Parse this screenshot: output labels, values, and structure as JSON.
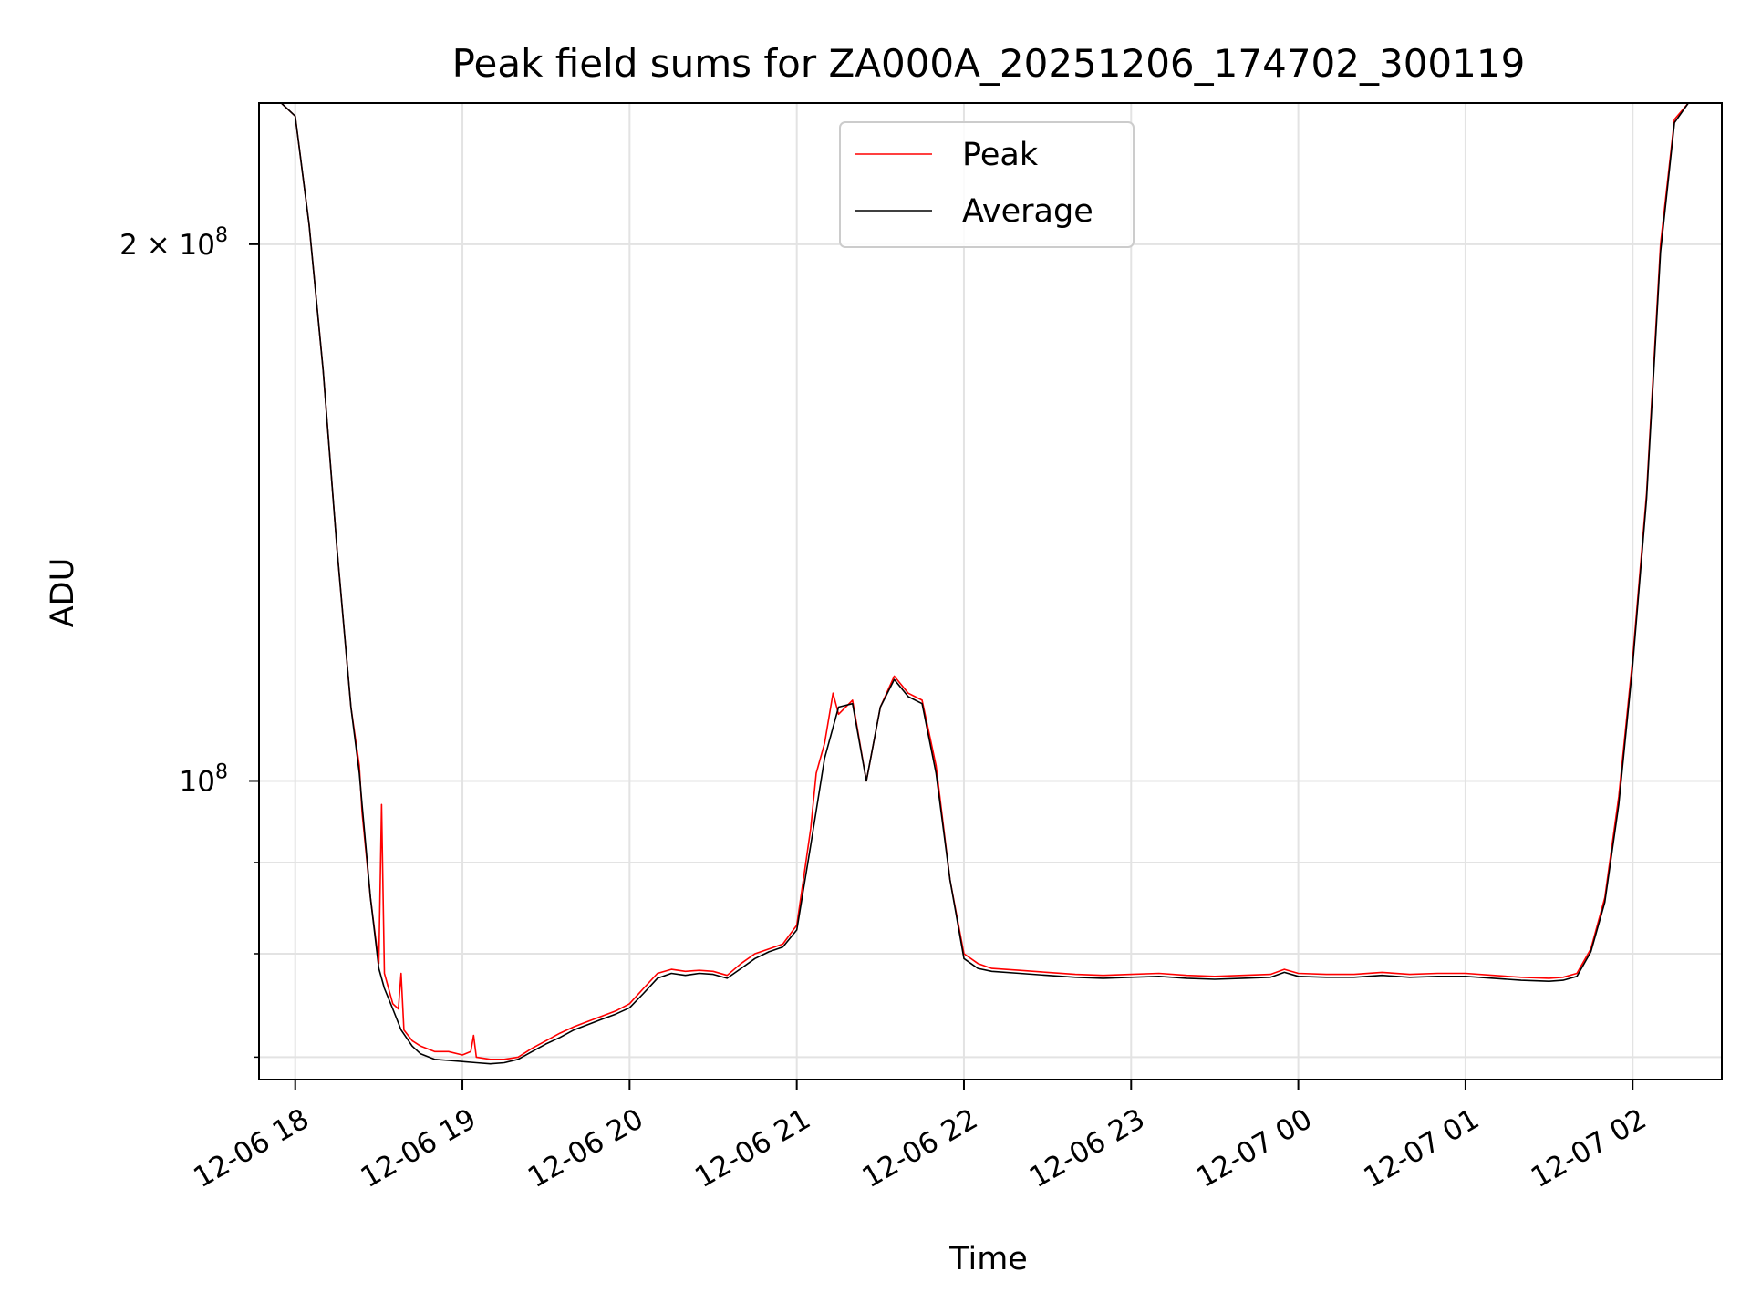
{
  "chart_data": {
    "type": "line",
    "title": "Peak field sums for ZA000A_20251206_174702_300119",
    "xlabel": "Time",
    "ylabel": "ADU",
    "y_scale": "log",
    "xlim": [
      "2025-12-06 17:47",
      "2025-12-07 02:32"
    ],
    "ylim": [
      68000000,
      240000000
    ],
    "grid": true,
    "legend": {
      "placement": "top-center",
      "entries": [
        "Peak",
        "Average"
      ]
    },
    "x_ticks": [
      {
        "value": "2025-12-06 18:00",
        "label": "12-06 18"
      },
      {
        "value": "2025-12-06 19:00",
        "label": "12-06 19"
      },
      {
        "value": "2025-12-06 20:00",
        "label": "12-06 20"
      },
      {
        "value": "2025-12-06 21:00",
        "label": "12-06 21"
      },
      {
        "value": "2025-12-06 22:00",
        "label": "12-06 22"
      },
      {
        "value": "2025-12-06 23:00",
        "label": "12-06 23"
      },
      {
        "value": "2025-12-07 00:00",
        "label": "12-07 00"
      },
      {
        "value": "2025-12-07 01:00",
        "label": "12-07 01"
      },
      {
        "value": "2025-12-07 02:00",
        "label": "12-07 02"
      }
    ],
    "y_ticks_major": [
      {
        "value": 100000000,
        "label": "10",
        "exp": "8"
      },
      {
        "value": 200000000,
        "label": "2 × 10",
        "exp": "8"
      }
    ],
    "y_ticks_minor": [
      70000000,
      80000000,
      90000000
    ],
    "series": [
      {
        "name": "Peak",
        "color": "#ff0000",
        "x": [
          "2025-12-06 17:47",
          "2025-12-06 17:55",
          "2025-12-06 18:00",
          "2025-12-06 18:05",
          "2025-12-06 18:10",
          "2025-12-06 18:15",
          "2025-12-06 18:20",
          "2025-12-06 18:23",
          "2025-12-06 18:24",
          "2025-12-06 18:27",
          "2025-12-06 18:30",
          "2025-12-06 18:31",
          "2025-12-06 18:32",
          "2025-12-06 18:35",
          "2025-12-06 18:37",
          "2025-12-06 18:38",
          "2025-12-06 18:39",
          "2025-12-06 18:42",
          "2025-12-06 18:45",
          "2025-12-06 18:50",
          "2025-12-06 18:55",
          "2025-12-06 19:00",
          "2025-12-06 19:03",
          "2025-12-06 19:04",
          "2025-12-06 19:05",
          "2025-12-06 19:10",
          "2025-12-06 19:15",
          "2025-12-06 19:20",
          "2025-12-06 19:25",
          "2025-12-06 19:30",
          "2025-12-06 19:35",
          "2025-12-06 19:40",
          "2025-12-06 19:45",
          "2025-12-06 19:50",
          "2025-12-06 19:55",
          "2025-12-06 20:00",
          "2025-12-06 20:05",
          "2025-12-06 20:10",
          "2025-12-06 20:15",
          "2025-12-06 20:20",
          "2025-12-06 20:25",
          "2025-12-06 20:30",
          "2025-12-06 20:35",
          "2025-12-06 20:40",
          "2025-12-06 20:45",
          "2025-12-06 20:50",
          "2025-12-06 20:55",
          "2025-12-06 21:00",
          "2025-12-06 21:05",
          "2025-12-06 21:07",
          "2025-12-06 21:10",
          "2025-12-06 21:13",
          "2025-12-06 21:15",
          "2025-12-06 21:20",
          "2025-12-06 21:25",
          "2025-12-06 21:30",
          "2025-12-06 21:35",
          "2025-12-06 21:40",
          "2025-12-06 21:45",
          "2025-12-06 21:50",
          "2025-12-06 21:55",
          "2025-12-06 22:00",
          "2025-12-06 22:05",
          "2025-12-06 22:10",
          "2025-12-06 22:20",
          "2025-12-06 22:30",
          "2025-12-06 22:40",
          "2025-12-06 22:50",
          "2025-12-06 23:00",
          "2025-12-06 23:10",
          "2025-12-06 23:20",
          "2025-12-06 23:30",
          "2025-12-06 23:40",
          "2025-12-06 23:50",
          "2025-12-06 23:55",
          "2025-12-07 00:00",
          "2025-12-07 00:10",
          "2025-12-07 00:20",
          "2025-12-07 00:30",
          "2025-12-07 00:40",
          "2025-12-07 00:50",
          "2025-12-07 01:00",
          "2025-12-07 01:10",
          "2025-12-07 01:20",
          "2025-12-07 01:30",
          "2025-12-07 01:35",
          "2025-12-07 01:40",
          "2025-12-07 01:45",
          "2025-12-07 01:50",
          "2025-12-07 01:55",
          "2025-12-07 02:00",
          "2025-12-07 02:05",
          "2025-12-07 02:10",
          "2025-12-07 02:15",
          "2025-12-07 02:20",
          "2025-12-07 02:32"
        ],
        "y": [
          240000000,
          240000000,
          236000000,
          205000000,
          170000000,
          135000000,
          110000000,
          102000000,
          96000000,
          86000000,
          79000000,
          97000000,
          78000000,
          75000000,
          74500000,
          78000000,
          72500000,
          71500000,
          71000000,
          70500000,
          70500000,
          70200000,
          70500000,
          72000000,
          70000000,
          69800000,
          69800000,
          70000000,
          70800000,
          71500000,
          72200000,
          72800000,
          73300000,
          73800000,
          74300000,
          75000000,
          76500000,
          78000000,
          78400000,
          78200000,
          78300000,
          78200000,
          77800000,
          79000000,
          80000000,
          80500000,
          81000000,
          83000000,
          94000000,
          101000000,
          105000000,
          112000000,
          109000000,
          111000000,
          100000000,
          110000000,
          114500000,
          112000000,
          111000000,
          102000000,
          88000000,
          80000000,
          79000000,
          78500000,
          78300000,
          78100000,
          77900000,
          77800000,
          77900000,
          78000000,
          77800000,
          77700000,
          77800000,
          77900000,
          78400000,
          78000000,
          77900000,
          77900000,
          78100000,
          77900000,
          78000000,
          78000000,
          77800000,
          77600000,
          77500000,
          77600000,
          78000000,
          80500000,
          86000000,
          98000000,
          117000000,
          145000000,
          200000000,
          235000000,
          240000000,
          240000000
        ]
      },
      {
        "name": "Average",
        "color": "#000000",
        "x": [
          "2025-12-06 17:47",
          "2025-12-06 17:55",
          "2025-12-06 18:00",
          "2025-12-06 18:05",
          "2025-12-06 18:10",
          "2025-12-06 18:15",
          "2025-12-06 18:20",
          "2025-12-06 18:23",
          "2025-12-06 18:24",
          "2025-12-06 18:27",
          "2025-12-06 18:30",
          "2025-12-06 18:32",
          "2025-12-06 18:35",
          "2025-12-06 18:38",
          "2025-12-06 18:42",
          "2025-12-06 18:45",
          "2025-12-06 18:50",
          "2025-12-06 18:55",
          "2025-12-06 19:00",
          "2025-12-06 19:05",
          "2025-12-06 19:10",
          "2025-12-06 19:15",
          "2025-12-06 19:20",
          "2025-12-06 19:25",
          "2025-12-06 19:30",
          "2025-12-06 19:35",
          "2025-12-06 19:40",
          "2025-12-06 19:45",
          "2025-12-06 19:50",
          "2025-12-06 19:55",
          "2025-12-06 20:00",
          "2025-12-06 20:05",
          "2025-12-06 20:10",
          "2025-12-06 20:15",
          "2025-12-06 20:20",
          "2025-12-06 20:25",
          "2025-12-06 20:30",
          "2025-12-06 20:35",
          "2025-12-06 20:40",
          "2025-12-06 20:45",
          "2025-12-06 20:50",
          "2025-12-06 20:55",
          "2025-12-06 21:00",
          "2025-12-06 21:05",
          "2025-12-06 21:10",
          "2025-12-06 21:15",
          "2025-12-06 21:20",
          "2025-12-06 21:25",
          "2025-12-06 21:30",
          "2025-12-06 21:35",
          "2025-12-06 21:40",
          "2025-12-06 21:45",
          "2025-12-06 21:50",
          "2025-12-06 21:55",
          "2025-12-06 22:00",
          "2025-12-06 22:05",
          "2025-12-06 22:10",
          "2025-12-06 22:20",
          "2025-12-06 22:30",
          "2025-12-06 22:40",
          "2025-12-06 22:50",
          "2025-12-06 23:00",
          "2025-12-06 23:10",
          "2025-12-06 23:20",
          "2025-12-06 23:30",
          "2025-12-06 23:40",
          "2025-12-06 23:50",
          "2025-12-06 23:55",
          "2025-12-07 00:00",
          "2025-12-07 00:10",
          "2025-12-07 00:20",
          "2025-12-07 00:30",
          "2025-12-07 00:40",
          "2025-12-07 00:50",
          "2025-12-07 01:00",
          "2025-12-07 01:10",
          "2025-12-07 01:20",
          "2025-12-07 01:30",
          "2025-12-07 01:35",
          "2025-12-07 01:40",
          "2025-12-07 01:45",
          "2025-12-07 01:50",
          "2025-12-07 01:55",
          "2025-12-07 02:00",
          "2025-12-07 02:05",
          "2025-12-07 02:10",
          "2025-12-07 02:15",
          "2025-12-07 02:20",
          "2025-12-07 02:32"
        ],
        "y": [
          240000000,
          240000000,
          236000000,
          205000000,
          170000000,
          135000000,
          110000000,
          101000000,
          97000000,
          86000000,
          78500000,
          76500000,
          74500000,
          72500000,
          71000000,
          70300000,
          69800000,
          69700000,
          69600000,
          69500000,
          69400000,
          69500000,
          69800000,
          70500000,
          71200000,
          71800000,
          72500000,
          73000000,
          73500000,
          74000000,
          74600000,
          76000000,
          77500000,
          78000000,
          77800000,
          78000000,
          77900000,
          77500000,
          78500000,
          79500000,
          80200000,
          80700000,
          82500000,
          92000000,
          103000000,
          110000000,
          110500000,
          100000000,
          110000000,
          114000000,
          111500000,
          110500000,
          101000000,
          88000000,
          79500000,
          78500000,
          78200000,
          78000000,
          77800000,
          77600000,
          77500000,
          77600000,
          77700000,
          77500000,
          77400000,
          77500000,
          77600000,
          78100000,
          77700000,
          77600000,
          77600000,
          77800000,
          77600000,
          77700000,
          77700000,
          77500000,
          77300000,
          77200000,
          77300000,
          77700000,
          80200000,
          85500000,
          97000000,
          116000000,
          144000000,
          198000000,
          234000000,
          240000000,
          240000000
        ]
      }
    ]
  }
}
